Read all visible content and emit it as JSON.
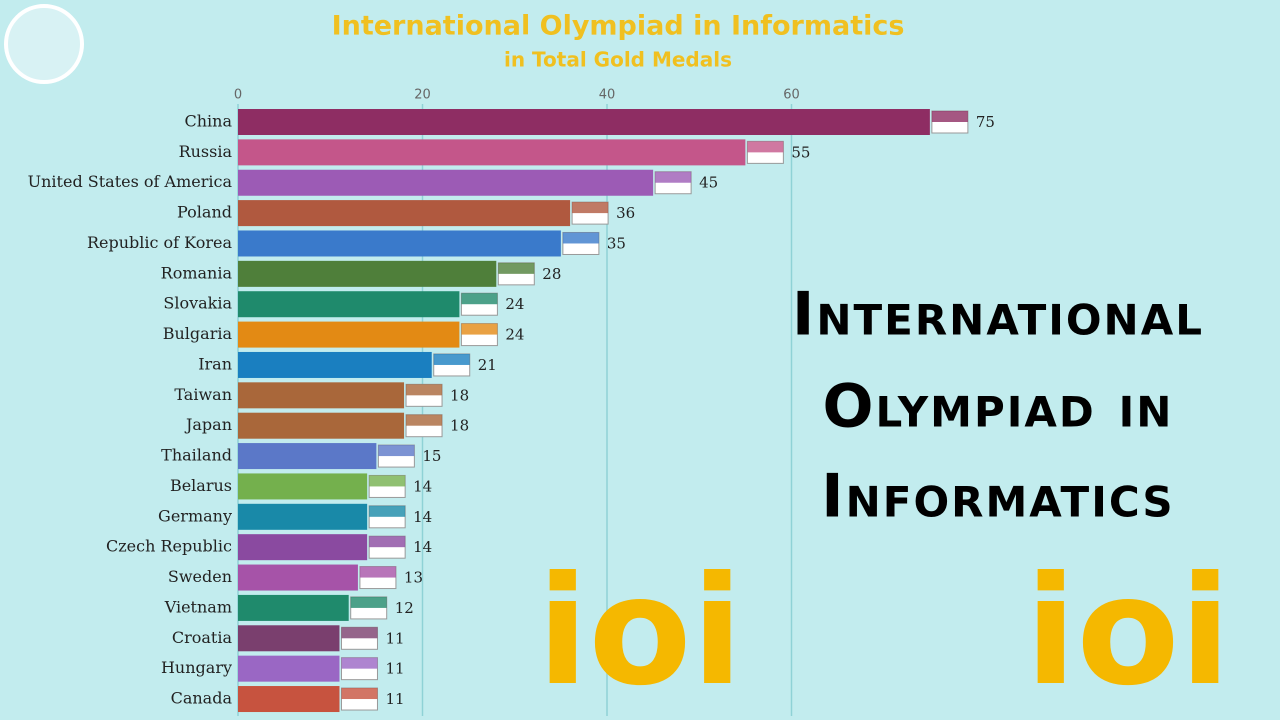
{
  "chart_data": {
    "type": "bar",
    "orientation": "horizontal",
    "title": "International Olympiad in Informatics",
    "subtitle": "in Total Gold Medals",
    "categories": [
      "China",
      "Russia",
      "United States of America",
      "Poland",
      "Republic of Korea",
      "Romania",
      "Slovakia",
      "Bulgaria",
      "Iran",
      "Taiwan",
      "Japan",
      "Thailand",
      "Belarus",
      "Germany",
      "Czech Republic",
      "Sweden",
      "Vietnam",
      "Croatia",
      "Hungary",
      "Canada"
    ],
    "values": [
      75,
      55,
      45,
      36,
      35,
      28,
      24,
      24,
      21,
      18,
      18,
      15,
      14,
      14,
      14,
      13,
      12,
      11,
      11,
      11
    ],
    "colors": [
      "#8e2d63",
      "#c4568a",
      "#9c5bb5",
      "#b0593f",
      "#3a7acb",
      "#4f7f3a",
      "#1f8a6c",
      "#e38a14",
      "#1a7fc0",
      "#a9673a",
      "#a9673a",
      "#5b78c8",
      "#74b04d",
      "#1989a8",
      "#8a4aa0",
      "#a653a8",
      "#1f8a6c",
      "#7a3f6e",
      "#9a67c4",
      "#c7533f"
    ],
    "xlim": [
      0,
      80
    ],
    "xticks": [
      0,
      20,
      40,
      60
    ],
    "grid": true
  },
  "overlay": {
    "headline": [
      "International",
      "Olympiad in",
      "Informatics"
    ],
    "logo": "ioi"
  }
}
